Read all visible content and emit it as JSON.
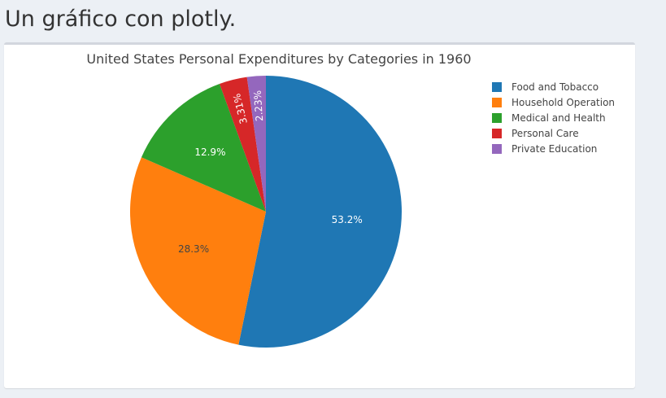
{
  "page": {
    "heading": "Un gráfico con plotly."
  },
  "chart_data": {
    "type": "pie",
    "title": "United States Personal Expenditures by Categories in 1960",
    "labels": [
      "Food and Tobacco",
      "Household Operation",
      "Medical and Health",
      "Personal Care",
      "Private Education"
    ],
    "values": [
      53.2,
      28.3,
      12.9,
      3.31,
      2.23
    ],
    "text_labels": [
      "53.2%",
      "28.3%",
      "12.9%",
      "3.31%",
      "2.23%"
    ],
    "colors": [
      "#1f77b4",
      "#ff7f0e",
      "#2ca02c",
      "#d62728",
      "#9467bd"
    ],
    "legend_position": "top-right",
    "direction": "clockwise",
    "start": "top"
  }
}
